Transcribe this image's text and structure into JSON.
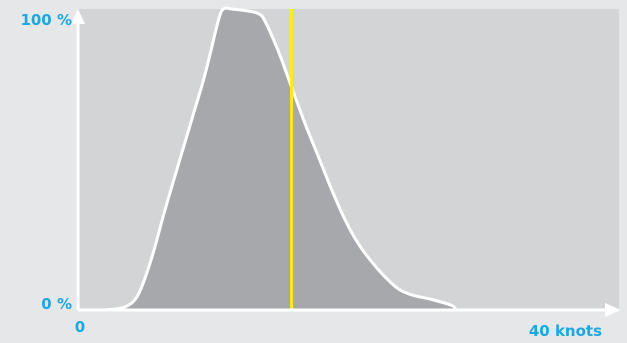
{
  "chart_data": {
    "type": "area",
    "xlabel": "",
    "ylabel": "",
    "x_tick_labels": {
      "min": "0",
      "max": "40 knots"
    },
    "y_tick_labels": {
      "min": "0 %",
      "max": "100 %"
    },
    "xlim": [
      0,
      40
    ],
    "ylim": [
      0,
      100
    ],
    "grid": false,
    "marker_line": {
      "x": 16
    },
    "series": [
      {
        "x": [
          2.0,
          3.5,
          4.5,
          5.5,
          6.5,
          7.5,
          8.5,
          9.5,
          10.5,
          10.9,
          11.5,
          12.5,
          13.5,
          14.0,
          15.0,
          16.0,
          17.0,
          18.0,
          19.0,
          20.0,
          21.0,
          22.0,
          23.0,
          24.0,
          25.0,
          26.5,
          28.0,
          28.3
        ],
        "y": [
          0,
          1,
          5,
          17,
          33,
          48,
          63,
          78,
          96,
          100,
          100,
          99.5,
          98.5,
          96,
          86,
          74,
          62,
          51,
          40,
          30,
          22,
          16,
          11,
          7,
          5,
          3.5,
          1.5,
          0
        ]
      }
    ],
    "colors": {
      "background": "#e6e7e9",
      "plot_area": "#d3d4d6",
      "area_fill": "#a7a8ab",
      "curve": "#ffffff",
      "axis": "#ffffff",
      "marker_line": "#fff000",
      "labels": "#1aa9e5"
    }
  }
}
